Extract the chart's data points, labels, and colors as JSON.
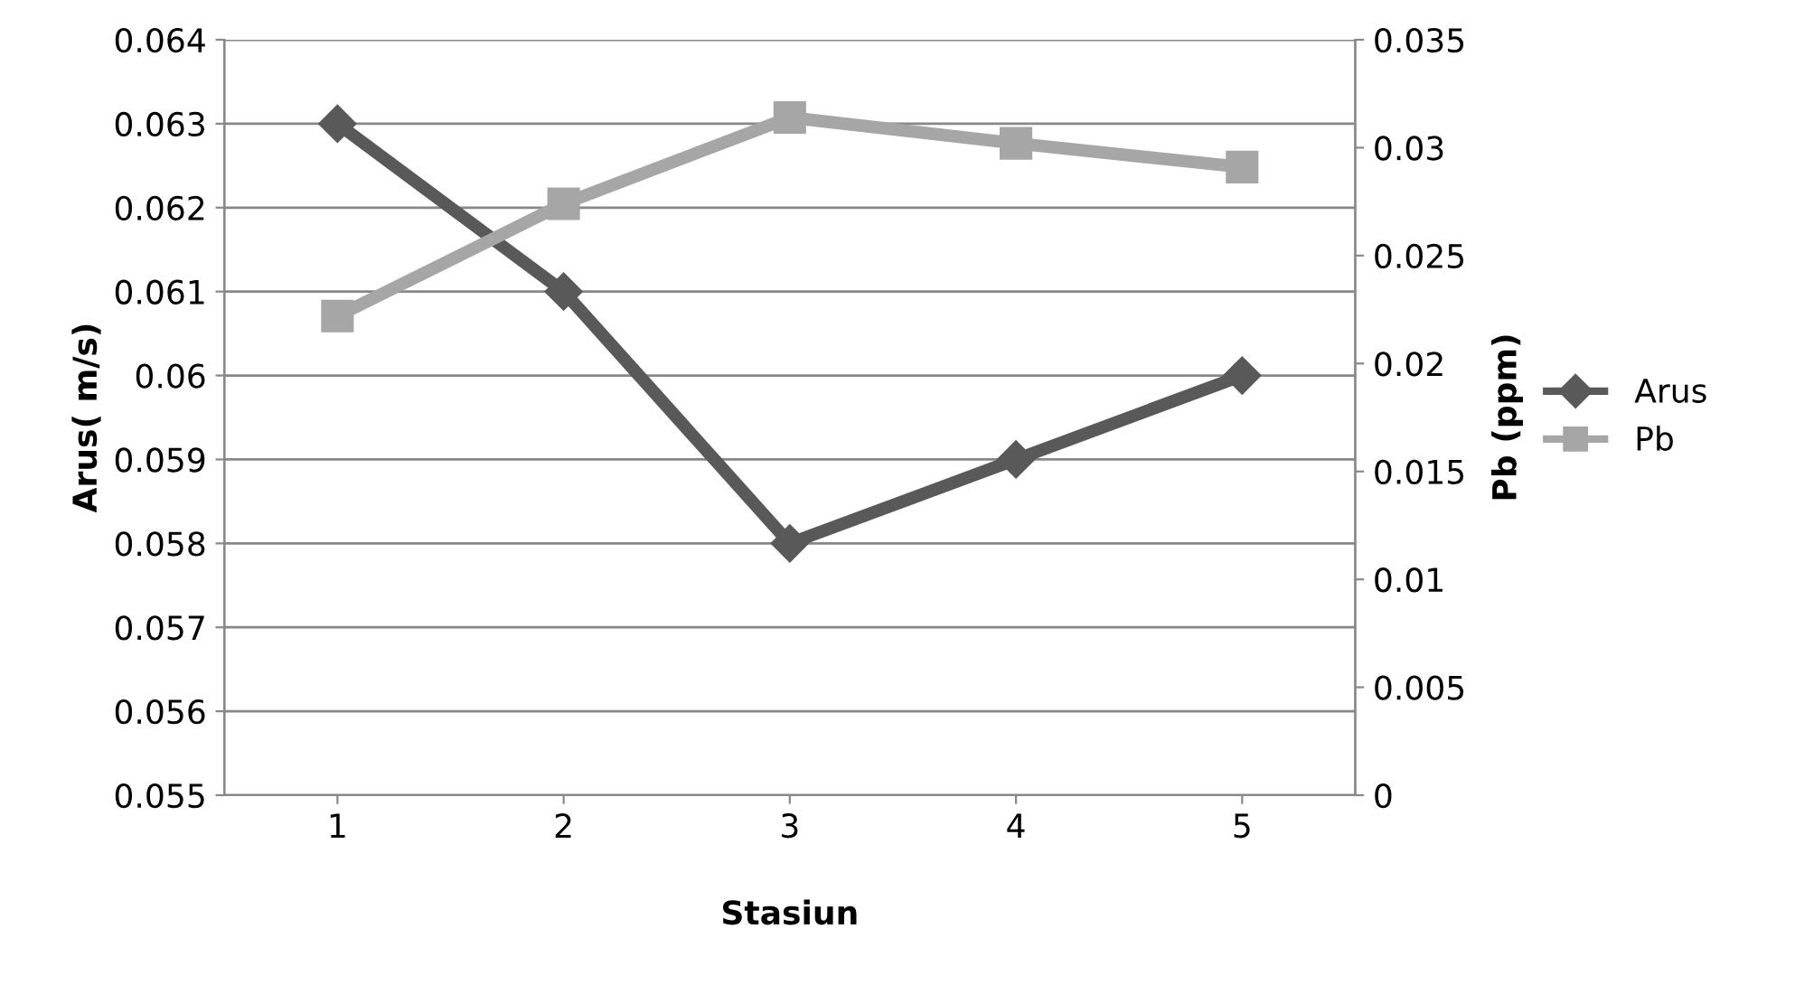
{
  "chart_data": {
    "type": "line",
    "xlabel": "Stasiun",
    "ylabel": "Arus( m/s)",
    "y2label": "Pb (ppm)",
    "categories": [
      "1",
      "2",
      "3",
      "4",
      "5"
    ],
    "series": [
      {
        "name": "Arus",
        "color": "#595959",
        "values": [
          0.063,
          0.061,
          0.058,
          0.059,
          0.06
        ],
        "marker": "diamond"
      },
      {
        "name": "Pb",
        "color": "#a6a6a6",
        "values": [
          0.0222,
          0.0274,
          0.0314,
          0.0302,
          0.0291
        ],
        "axis": "y2",
        "marker": "square"
      }
    ],
    "ylim": [
      0.055,
      0.064
    ],
    "yticks": [
      0.055,
      0.056,
      0.057,
      0.058,
      0.059,
      0.06,
      0.061,
      0.062,
      0.063,
      0.064
    ],
    "y2lim": [
      0,
      0.035
    ],
    "y2ticks": [
      0,
      0.005,
      0.01,
      0.015,
      0.02,
      0.025,
      0.03,
      0.035
    ],
    "grid": "y",
    "legend": "right",
    "line_style": "solid"
  }
}
